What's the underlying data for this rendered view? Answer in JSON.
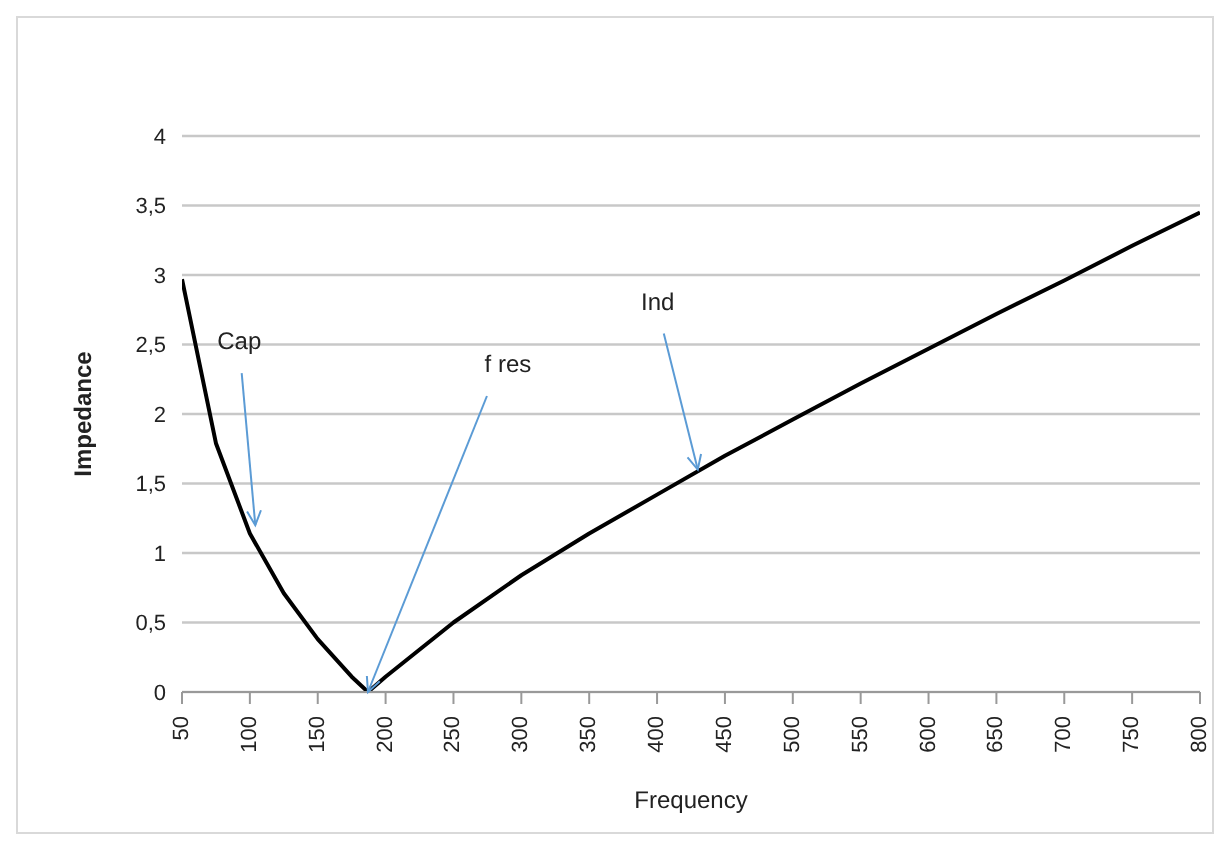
{
  "chart_data": {
    "type": "line",
    "xlabel": "Frequency",
    "ylabel": "Impedance",
    "x": [
      50,
      75,
      100,
      125,
      150,
      175,
      187,
      200,
      250,
      300,
      350,
      400,
      450,
      500,
      550,
      600,
      650,
      700,
      750,
      800
    ],
    "series": [
      {
        "color": "#000000",
        "values": [
          2.97,
          1.79,
          1.14,
          0.71,
          0.38,
          0.11,
          0,
          0.11,
          0.5,
          0.84,
          1.14,
          1.42,
          1.7,
          1.96,
          2.22,
          2.47,
          2.72,
          2.96,
          3.21,
          3.45
        ]
      }
    ],
    "xlim": [
      50,
      800
    ],
    "xticks": [
      50,
      100,
      150,
      200,
      250,
      300,
      350,
      400,
      450,
      500,
      550,
      600,
      650,
      700,
      750,
      800
    ],
    "ylim": [
      0,
      4
    ],
    "yticks": [
      0,
      {
        "value": 0.5,
        "label": "0,5"
      },
      1,
      {
        "value": 1.5,
        "label": "1,5"
      },
      2,
      {
        "value": 2.5,
        "label": "2,5"
      },
      3,
      {
        "value": 3.5,
        "label": "3,5"
      },
      4
    ],
    "annotations": [
      {
        "text": "Cap",
        "x": 104,
        "y": 1.2
      },
      {
        "text": "f res",
        "x": 187,
        "y": 0
      },
      {
        "text": "Ind",
        "x": 430,
        "y": 1.6
      }
    ],
    "grid": "y",
    "marker": "none",
    "line_style": "solid",
    "legend": false
  }
}
